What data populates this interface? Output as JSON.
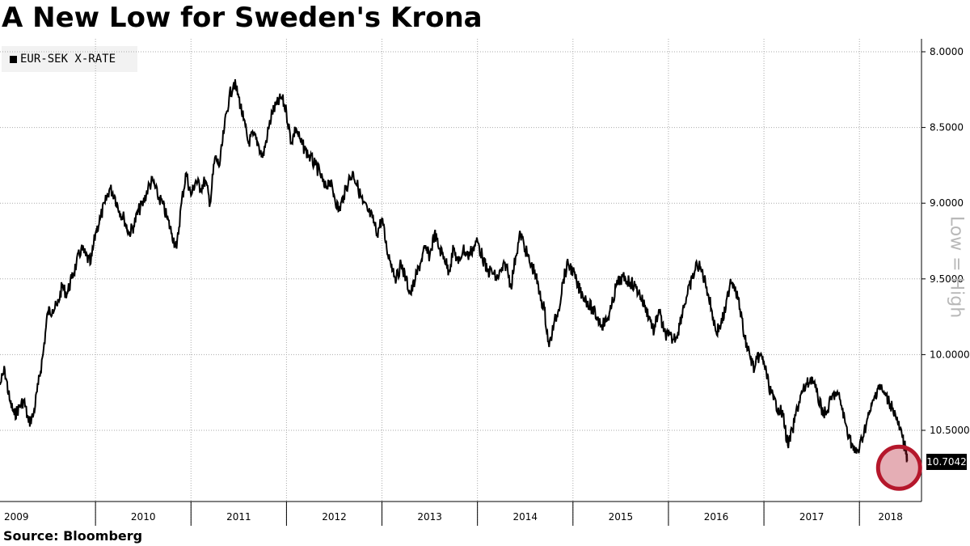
{
  "title": "A New Low for Sweden's Krona",
  "source": "Source:  Bloomberg",
  "side_note": "Low = High",
  "legend": {
    "label": "EUR-SEK X-RATE",
    "color": "#000000"
  },
  "last_value": "10.7042",
  "highlight_color": "#b5172b",
  "chart_data": {
    "type": "line",
    "title": "A New Low for Sweden's Krona",
    "series_name": "EUR-SEK X-RATE",
    "y_axis_inverted": true,
    "ylim": [
      8.0,
      10.8
    ],
    "y_ticks": [
      "8.0000",
      "8.5000",
      "9.0000",
      "9.5000",
      "10.0000",
      "10.5000"
    ],
    "x_ticks": [
      "2009",
      "2010",
      "2011",
      "2012",
      "2013",
      "2014",
      "2015",
      "2016",
      "2017",
      "2018"
    ],
    "grid": true,
    "legend_position": "top-left",
    "x": [
      2009.0,
      2009.05,
      2009.1,
      2009.15,
      2009.2,
      2009.25,
      2009.3,
      2009.35,
      2009.4,
      2009.45,
      2009.5,
      2009.55,
      2009.6,
      2009.65,
      2009.7,
      2009.75,
      2009.8,
      2009.85,
      2009.9,
      2009.95,
      2010.0,
      2010.05,
      2010.1,
      2010.15,
      2010.2,
      2010.25,
      2010.3,
      2010.35,
      2010.4,
      2010.45,
      2010.5,
      2010.55,
      2010.6,
      2010.65,
      2010.7,
      2010.75,
      2010.8,
      2010.85,
      2010.9,
      2010.95,
      2011.0,
      2011.05,
      2011.1,
      2011.15,
      2011.2,
      2011.25,
      2011.3,
      2011.35,
      2011.4,
      2011.45,
      2011.5,
      2011.55,
      2011.6,
      2011.65,
      2011.7,
      2011.75,
      2011.8,
      2011.85,
      2011.9,
      2011.95,
      2012.0,
      2012.05,
      2012.1,
      2012.15,
      2012.2,
      2012.25,
      2012.3,
      2012.35,
      2012.4,
      2012.45,
      2012.5,
      2012.55,
      2012.6,
      2012.65,
      2012.7,
      2012.75,
      2012.8,
      2012.85,
      2012.9,
      2012.95,
      2013.0,
      2013.05,
      2013.1,
      2013.15,
      2013.2,
      2013.25,
      2013.3,
      2013.35,
      2013.4,
      2013.45,
      2013.5,
      2013.55,
      2013.6,
      2013.65,
      2013.7,
      2013.75,
      2013.8,
      2013.85,
      2013.9,
      2013.95,
      2014.0,
      2014.05,
      2014.1,
      2014.15,
      2014.2,
      2014.25,
      2014.3,
      2014.35,
      2014.4,
      2014.45,
      2014.5,
      2014.55,
      2014.6,
      2014.65,
      2014.7,
      2014.75,
      2014.8,
      2014.85,
      2014.9,
      2014.95,
      2015.0,
      2015.05,
      2015.1,
      2015.15,
      2015.2,
      2015.25,
      2015.3,
      2015.35,
      2015.4,
      2015.45,
      2015.5,
      2015.55,
      2015.6,
      2015.65,
      2015.7,
      2015.75,
      2015.8,
      2015.85,
      2015.9,
      2015.95,
      2016.0,
      2016.05,
      2016.1,
      2016.15,
      2016.2,
      2016.25,
      2016.3,
      2016.35,
      2016.4,
      2016.45,
      2016.5,
      2016.55,
      2016.6,
      2016.65,
      2016.7,
      2016.75,
      2016.8,
      2016.85,
      2016.9,
      2016.95,
      2017.0,
      2017.05,
      2017.1,
      2017.15,
      2017.2,
      2017.25,
      2017.3,
      2017.35,
      2017.4,
      2017.45,
      2017.5,
      2017.55,
      2017.6,
      2017.65,
      2017.7,
      2017.75,
      2017.8,
      2017.85,
      2017.9,
      2017.95,
      2018.0,
      2018.05,
      2018.1,
      2018.15,
      2018.2,
      2018.25,
      2018.3,
      2018.35,
      2018.4,
      2018.45,
      2018.48,
      2018.5
    ],
    "y": [
      10.2,
      10.1,
      10.3,
      10.4,
      10.35,
      10.3,
      10.45,
      10.4,
      10.2,
      10.0,
      9.72,
      9.7,
      9.68,
      9.55,
      9.6,
      9.5,
      9.4,
      9.3,
      9.35,
      9.4,
      9.2,
      9.1,
      9.0,
      8.9,
      8.95,
      9.05,
      9.1,
      9.2,
      9.15,
      9.05,
      9.0,
      8.9,
      8.85,
      8.95,
      9.0,
      9.1,
      9.2,
      9.3,
      9.0,
      8.8,
      8.95,
      8.85,
      8.9,
      8.85,
      9.0,
      8.7,
      8.75,
      8.5,
      8.3,
      8.2,
      8.3,
      8.45,
      8.6,
      8.55,
      8.6,
      8.7,
      8.55,
      8.4,
      8.35,
      8.3,
      8.4,
      8.6,
      8.5,
      8.6,
      8.65,
      8.7,
      8.75,
      8.8,
      8.9,
      8.85,
      8.95,
      9.05,
      8.95,
      8.85,
      8.8,
      8.9,
      9.0,
      9.05,
      9.1,
      9.2,
      9.1,
      9.3,
      9.4,
      9.5,
      9.4,
      9.5,
      9.6,
      9.5,
      9.4,
      9.3,
      9.35,
      9.2,
      9.3,
      9.35,
      9.45,
      9.3,
      9.4,
      9.3,
      9.35,
      9.3,
      9.25,
      9.35,
      9.45,
      9.45,
      9.5,
      9.45,
      9.4,
      9.55,
      9.35,
      9.2,
      9.3,
      9.4,
      9.45,
      9.6,
      9.7,
      9.95,
      9.8,
      9.7,
      9.5,
      9.4,
      9.45,
      9.55,
      9.6,
      9.65,
      9.7,
      9.75,
      9.8,
      9.78,
      9.7,
      9.55,
      9.5,
      9.5,
      9.52,
      9.55,
      9.6,
      9.68,
      9.75,
      9.85,
      9.7,
      9.85,
      9.88,
      9.9,
      9.85,
      9.7,
      9.6,
      9.5,
      9.4,
      9.45,
      9.55,
      9.7,
      9.85,
      9.8,
      9.7,
      9.5,
      9.55,
      9.7,
      9.9,
      10.0,
      10.1,
      10.0,
      10.05,
      10.2,
      10.3,
      10.35,
      10.4,
      10.6,
      10.5,
      10.35,
      10.25,
      10.2,
      10.15,
      10.25,
      10.35,
      10.4,
      10.3,
      10.25,
      10.3,
      10.45,
      10.55,
      10.65,
      10.62,
      10.5,
      10.4,
      10.3,
      10.2,
      10.25,
      10.3,
      10.35,
      10.45,
      10.55,
      10.62,
      10.7042
    ],
    "last_value_label": "10.7042"
  }
}
